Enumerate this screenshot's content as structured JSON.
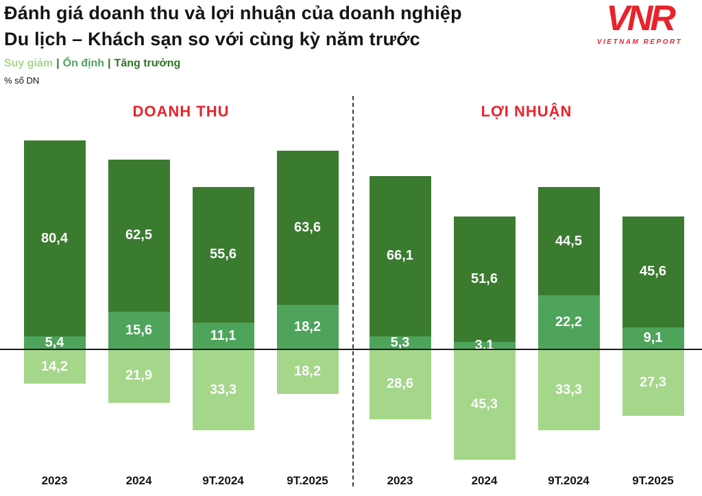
{
  "header": {
    "title_line1": "Đánh giá doanh thu và lợi nhuận của doanh nghiệp",
    "title_line2": "Du lịch – Khách sạn so với cùng kỳ năm trước",
    "unit_label": "% số DN",
    "logo": {
      "text": "VNR",
      "subtext": "VIETNAM REPORT"
    }
  },
  "legend": {
    "separator": "|",
    "items": [
      {
        "label": "Suy giảm",
        "color": "#a5d78b"
      },
      {
        "label": "Ổn định",
        "color": "#4fa45c"
      },
      {
        "label": "Tăng trưởng",
        "color": "#2f7327"
      }
    ]
  },
  "chart_data": {
    "type": "bar",
    "stacked": true,
    "ylabel": "% số DN",
    "decimal_separator": ",",
    "series_names": [
      "Suy giảm",
      "Ổn định",
      "Tăng trưởng"
    ],
    "colors": {
      "suy_giam": "#a5d78b",
      "on_dinh": "#4fa45c",
      "tang_truong": "#3a7b2f",
      "section_title": "#e8232b",
      "axis": "#1a1a1a"
    },
    "note": "Suy giảm is drawn below the baseline; Ổn định and Tăng trưởng stack above it",
    "groups": [
      {
        "title": "DOANH THU",
        "categories": [
          "2023",
          "2024",
          "9T.2024",
          "9T.2025"
        ],
        "bars": [
          {
            "tang_truong": 80.4,
            "on_dinh": 5.4,
            "suy_giam": 14.2
          },
          {
            "tang_truong": 62.5,
            "on_dinh": 15.6,
            "suy_giam": 21.9
          },
          {
            "tang_truong": 55.6,
            "on_dinh": 11.1,
            "suy_giam": 33.3
          },
          {
            "tang_truong": 63.6,
            "on_dinh": 18.2,
            "suy_giam": 18.2
          }
        ]
      },
      {
        "title": "LỢI NHUẬN",
        "categories": [
          "2023",
          "2024",
          "9T.2024",
          "9T.2025"
        ],
        "bars": [
          {
            "tang_truong": 66.1,
            "on_dinh": 5.3,
            "suy_giam": 28.6
          },
          {
            "tang_truong": 51.6,
            "on_dinh": 3.1,
            "suy_giam": 45.3
          },
          {
            "tang_truong": 44.5,
            "on_dinh": 22.2,
            "suy_giam": 33.3
          },
          {
            "tang_truong": 45.6,
            "on_dinh": 9.1,
            "suy_giam": 27.3
          }
        ]
      }
    ]
  }
}
